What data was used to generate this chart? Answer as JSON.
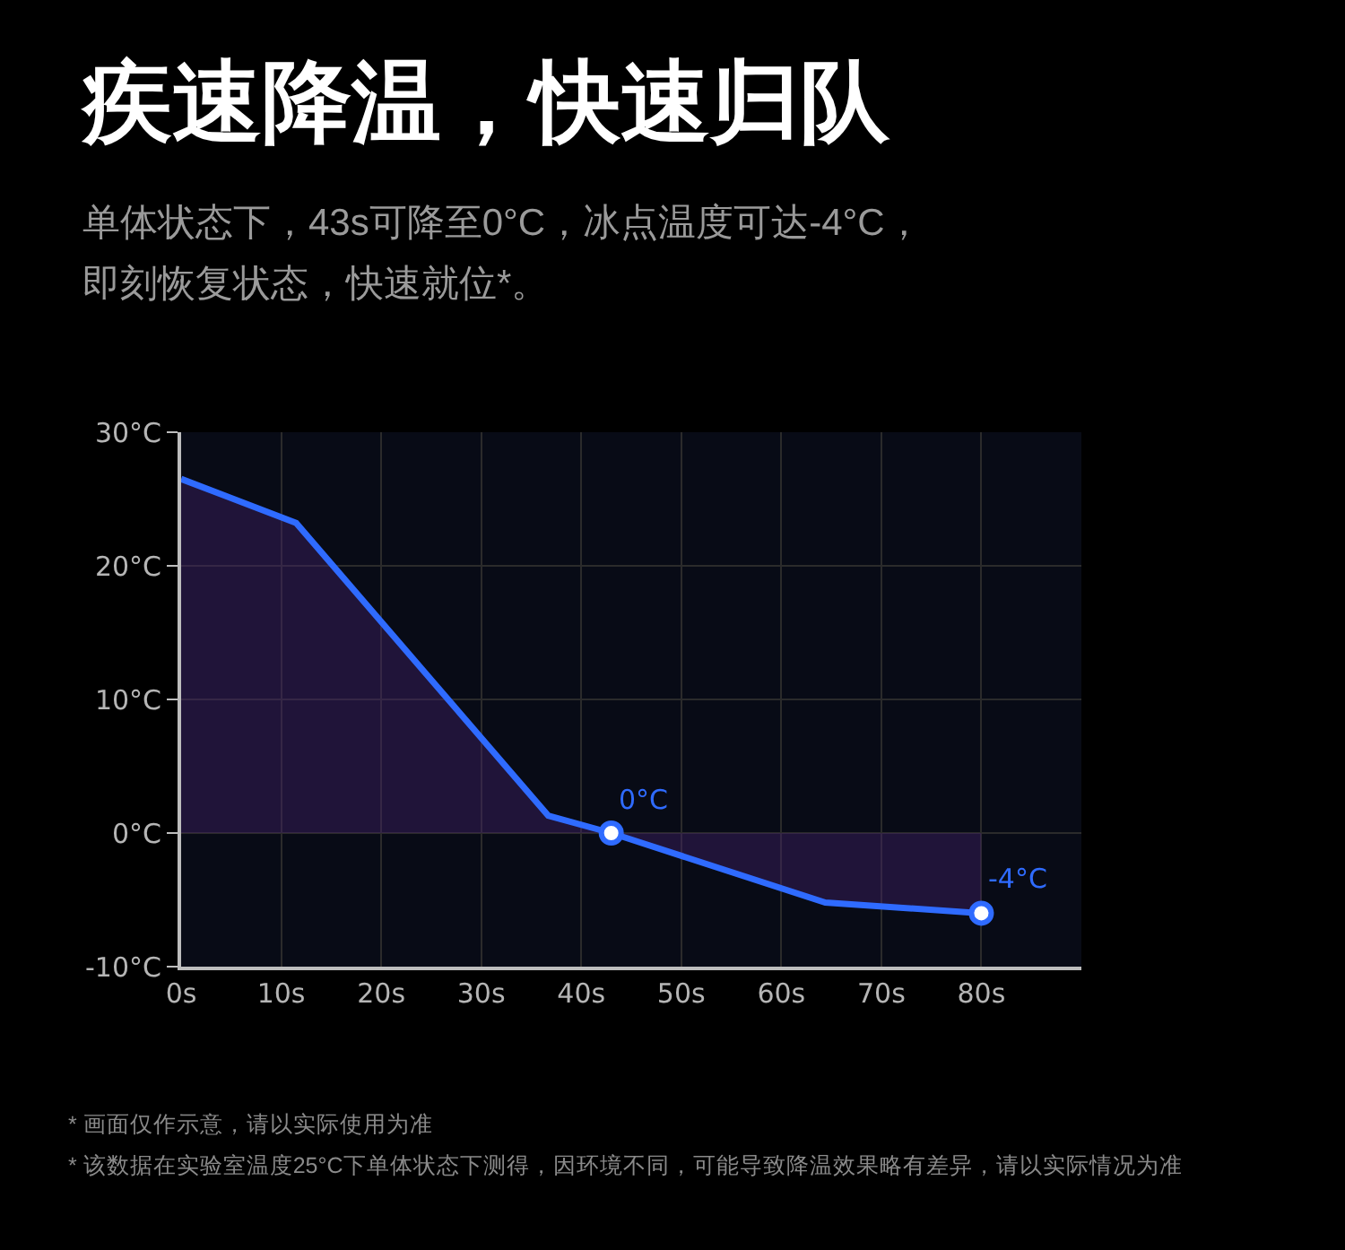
{
  "chart_data": {
    "type": "area",
    "title": "疾速降温，快速归队",
    "subtitle": "单体状态下，43s可降至0°C，冰点温度可达-4°C，即刻恢复状态，快速就位*。",
    "x": [
      0,
      11.5,
      36.7,
      43,
      64.4,
      80
    ],
    "series": [
      {
        "color": "#2f6bff",
        "values": [
          26.5,
          23.2,
          1.3,
          0,
          -5.2,
          -6
        ]
      }
    ],
    "xlim": [
      0,
      90
    ],
    "ylim": [
      -10,
      30
    ],
    "xticks": [
      {
        "value": 0,
        "label": "0s"
      },
      {
        "value": 10,
        "label": "10s"
      },
      {
        "value": 20,
        "label": "20s"
      },
      {
        "value": 30,
        "label": "30s"
      },
      {
        "value": 40,
        "label": "40s"
      },
      {
        "value": 50,
        "label": "50s"
      },
      {
        "value": 60,
        "label": "60s"
      },
      {
        "value": 70,
        "label": "70s"
      },
      {
        "value": 80,
        "label": "80s"
      }
    ],
    "yticks": [
      {
        "value": -10,
        "label": "-10°C"
      },
      {
        "value": 0,
        "label": "0°C"
      },
      {
        "value": 10,
        "label": "10°C"
      },
      {
        "value": 20,
        "label": "20°C"
      },
      {
        "value": 30,
        "label": "30°C"
      }
    ],
    "grid": true,
    "annotations": [
      {
        "text": "0°C",
        "x": 43,
        "y": 0
      },
      {
        "text": "-4°C",
        "x": 80,
        "y": -6
      },
      "* 画面仅作示意，请以实际使用为准",
      "* 该数据在实验室温度25°C下单体状态下测得，因环境不同，可能导致降温效果略有差异，请以实际情况为准"
    ]
  }
}
